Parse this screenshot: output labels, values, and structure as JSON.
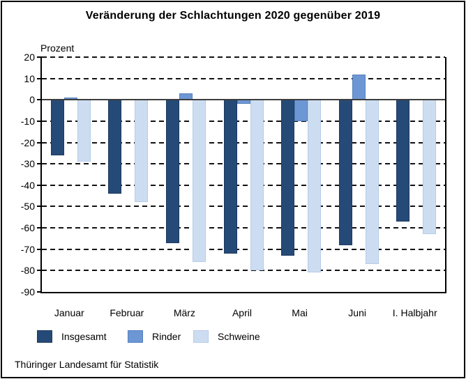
{
  "title": "Veränderung der Schlachtungen 2020 gegenüber 2019",
  "y_axis_label": "Prozent",
  "source": "Thüringer Landesamt für Statistik",
  "colors": {
    "insgesamt": "#264a77",
    "insgesamt_border": "#1c3a5f",
    "rinder": "#6d97d4",
    "rinder_border": "#5580bd",
    "schweine": "#cdddf1",
    "schweine_border": "#b6cbe7",
    "zero_line": "#3d3d3d",
    "grid": "#111111"
  },
  "chart_data": {
    "type": "bar",
    "title": "Veränderung der Schlachtungen 2020 gegenüber 2019",
    "ylabel": "Prozent",
    "categories": [
      "Januar",
      "Februar",
      "März",
      "April",
      "Mai",
      "Juni",
      "I. Halbjahr"
    ],
    "series": [
      {
        "name": "Insgesamt",
        "color": "#264a77",
        "border": "#1c3a5f",
        "values": [
          -26,
          -44,
          -67,
          -72,
          -73,
          -68,
          -57
        ]
      },
      {
        "name": "Rinder",
        "color": "#6d97d4",
        "border": "#5580bd",
        "values": [
          1,
          0,
          3,
          -2,
          -10,
          12,
          0.5
        ]
      },
      {
        "name": "Schweine",
        "color": "#cdddf1",
        "border": "#b6cbe7",
        "values": [
          -29,
          -48,
          -76,
          -80,
          -81,
          -77,
          -63
        ]
      }
    ],
    "ylim": [
      -90,
      20
    ],
    "ytick_step": 10,
    "grid": "dashed-horizontal",
    "legend_position": "bottom"
  }
}
